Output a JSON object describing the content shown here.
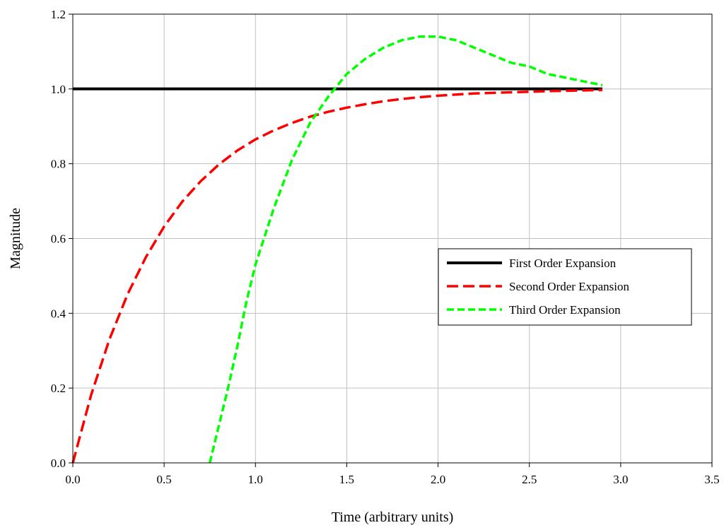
{
  "chart_data": {
    "type": "line",
    "title": "",
    "xlabel": "Time (arbitrary units)",
    "ylabel": "Magnitude",
    "xlim": [
      0,
      3.5
    ],
    "ylim": [
      0,
      1.2
    ],
    "x_ticks": [
      0,
      0.5,
      1.0,
      1.5,
      2.0,
      2.5,
      3.0,
      3.5
    ],
    "x_tick_labels": [
      "0.0",
      "0.5",
      "1.0",
      "1.5",
      "2.0",
      "2.5",
      "3.0",
      "3.5"
    ],
    "y_ticks": [
      0,
      0.2,
      0.4,
      0.6,
      0.8,
      1.0,
      1.2
    ],
    "y_tick_labels": [
      "0.0",
      "0.2",
      "0.4",
      "0.6",
      "0.8",
      "1.0",
      "1.2"
    ],
    "grid": true,
    "legend_position": "right",
    "series": [
      {
        "name": "First Order Expansion",
        "color": "#000000",
        "style": "solid",
        "x": [
          0,
          2.9
        ],
        "y": [
          1.0,
          1.0
        ]
      },
      {
        "name": "Second Order Expansion",
        "color": "#ff0000",
        "style": "dashed",
        "x": [
          0,
          0.1,
          0.2,
          0.3,
          0.4,
          0.5,
          0.6,
          0.7,
          0.8,
          0.9,
          1.0,
          1.1,
          1.2,
          1.3,
          1.4,
          1.5,
          1.6,
          1.7,
          1.8,
          1.9,
          2.0,
          2.2,
          2.4,
          2.6,
          2.8,
          2.9
        ],
        "y": [
          0,
          0.181,
          0.33,
          0.451,
          0.55,
          0.632,
          0.699,
          0.753,
          0.798,
          0.835,
          0.865,
          0.889,
          0.909,
          0.926,
          0.939,
          0.95,
          0.959,
          0.967,
          0.973,
          0.978,
          0.982,
          0.988,
          0.991,
          0.994,
          0.996,
          0.997
        ]
      },
      {
        "name": "Third Order Expansion",
        "color": "#00ff00",
        "style": "dashed",
        "x": [
          0.75,
          0.8,
          0.85,
          0.9,
          0.95,
          1.0,
          1.1,
          1.2,
          1.3,
          1.4,
          1.5,
          1.6,
          1.7,
          1.8,
          1.9,
          2.0,
          2.1,
          2.2,
          2.3,
          2.4,
          2.5,
          2.6,
          2.7,
          2.8,
          2.9
        ],
        "y": [
          0,
          0.1,
          0.2,
          0.31,
          0.43,
          0.53,
          0.68,
          0.81,
          0.91,
          0.98,
          1.04,
          1.08,
          1.11,
          1.13,
          1.14,
          1.14,
          1.13,
          1.11,
          1.09,
          1.07,
          1.06,
          1.04,
          1.03,
          1.02,
          1.01
        ]
      }
    ]
  }
}
